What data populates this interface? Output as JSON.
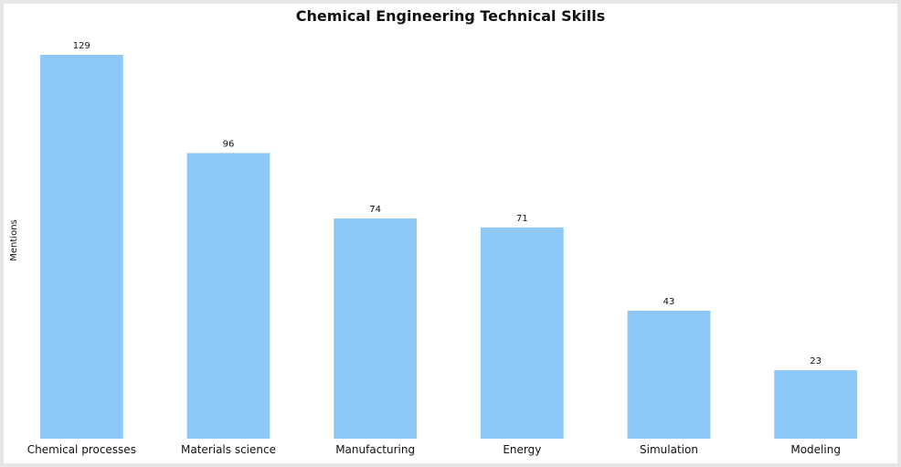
{
  "chart_data": {
    "type": "bar",
    "title": "Chemical Engineering Technical Skills",
    "xlabel": "",
    "ylabel": "Mentions",
    "categories": [
      "Chemical processes",
      "Materials science",
      "Manufacturing",
      "Energy",
      "Simulation",
      "Modeling"
    ],
    "values": [
      129,
      96,
      74,
      71,
      43,
      23
    ],
    "ylim": [
      0,
      129
    ],
    "grid": false,
    "legend": "none",
    "colors": {
      "bar": "#8dc8f6"
    }
  }
}
